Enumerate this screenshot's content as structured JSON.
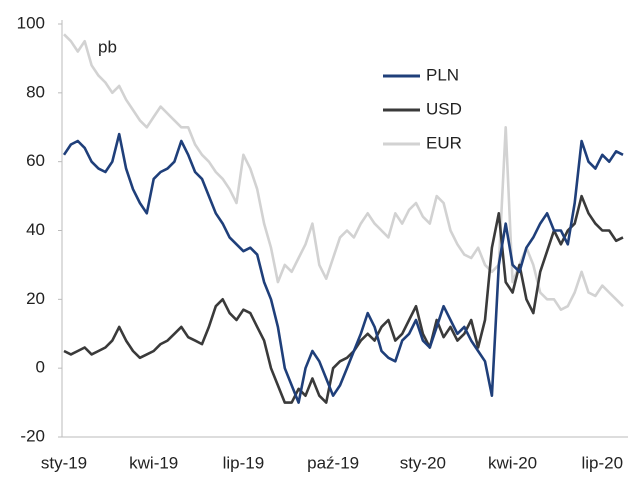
{
  "chart_data": {
    "type": "line",
    "unit_label": "pb",
    "categories": [
      "sty-19",
      null,
      null,
      null,
      null,
      null,
      null,
      null,
      null,
      null,
      null,
      null,
      null,
      "kwi-19",
      null,
      null,
      null,
      null,
      null,
      null,
      null,
      null,
      null,
      null,
      null,
      null,
      "lip-19",
      null,
      null,
      null,
      null,
      null,
      null,
      null,
      null,
      null,
      null,
      null,
      null,
      "paź-19",
      null,
      null,
      null,
      null,
      null,
      null,
      null,
      null,
      null,
      null,
      null,
      null,
      "sty-20",
      null,
      null,
      null,
      null,
      null,
      null,
      null,
      null,
      null,
      null,
      null,
      null,
      "kwi-20",
      null,
      null,
      null,
      null,
      null,
      null,
      null,
      null,
      null,
      null,
      null,
      null,
      "lip-20",
      null,
      null,
      null
    ],
    "series": [
      {
        "name": "PLN",
        "color": "#1f3f7a",
        "values": [
          62,
          65,
          66,
          64,
          60,
          58,
          57,
          60,
          68,
          58,
          52,
          48,
          45,
          55,
          57,
          58,
          60,
          66,
          62,
          57,
          55,
          50,
          45,
          42,
          38,
          36,
          34,
          35,
          33,
          25,
          20,
          12,
          0,
          -5,
          -10,
          0,
          5,
          2,
          -3,
          -8,
          -5,
          0,
          5,
          10,
          16,
          12,
          5,
          3,
          2,
          8,
          10,
          14,
          8,
          6,
          12,
          18,
          14,
          10,
          12,
          8,
          5,
          2,
          -8,
          30,
          42,
          30,
          28,
          35,
          38,
          42,
          45,
          40,
          40,
          36,
          48,
          66,
          60,
          58,
          62,
          60,
          63,
          62
        ]
      },
      {
        "name": "USD",
        "color": "#3a3a3a",
        "values": [
          5,
          4,
          5,
          6,
          4,
          5,
          6,
          8,
          12,
          8,
          5,
          3,
          4,
          5,
          7,
          8,
          10,
          12,
          9,
          8,
          7,
          12,
          18,
          20,
          16,
          14,
          17,
          16,
          12,
          8,
          0,
          -5,
          -10,
          -10,
          -6,
          -8,
          -3,
          -8,
          -10,
          0,
          2,
          3,
          5,
          8,
          10,
          8,
          12,
          14,
          8,
          10,
          14,
          18,
          10,
          6,
          14,
          9,
          12,
          8,
          10,
          14,
          6,
          14,
          35,
          45,
          25,
          22,
          30,
          20,
          16,
          28,
          34,
          40,
          36,
          40,
          42,
          50,
          45,
          42,
          40,
          40,
          37,
          38
        ]
      },
      {
        "name": "EUR",
        "color": "#d2d2d2",
        "values": [
          97,
          95,
          92,
          95,
          88,
          85,
          83,
          80,
          82,
          78,
          75,
          72,
          70,
          73,
          76,
          74,
          72,
          70,
          70,
          65,
          62,
          60,
          57,
          55,
          52,
          48,
          62,
          58,
          52,
          42,
          35,
          25,
          30,
          28,
          32,
          36,
          42,
          30,
          26,
          32,
          38,
          40,
          38,
          42,
          45,
          42,
          40,
          38,
          45,
          42,
          46,
          48,
          44,
          42,
          50,
          48,
          40,
          36,
          33,
          32,
          35,
          30,
          28,
          30,
          70,
          25,
          30,
          35,
          30,
          22,
          20,
          20,
          17,
          18,
          22,
          28,
          22,
          21,
          24,
          22,
          20,
          18
        ]
      }
    ],
    "ylim": [
      -20,
      100
    ],
    "yticks": [
      -20,
      0,
      20,
      40,
      60,
      80,
      100
    ],
    "grid": false,
    "legend": "top-right"
  }
}
